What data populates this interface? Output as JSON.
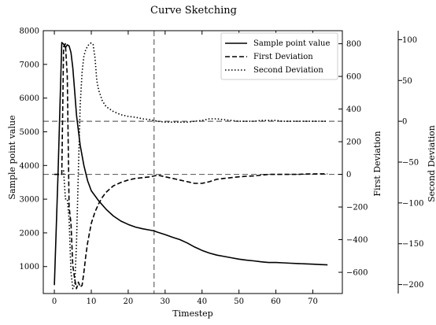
{
  "chart_data": {
    "type": "line",
    "title": "Curve Sketching",
    "xlabel": "Timestep",
    "y_left_label": "Sample point value",
    "y_right1_label": "First Deviation",
    "y_right2_label": "Second Deviation",
    "xlim": [
      -3,
      78
    ],
    "ylim_left": [
      200,
      8000
    ],
    "ylim_right1": [
      -730,
      880
    ],
    "ylim_right2": [
      -211,
      111
    ],
    "x_ticks": [
      "0",
      "10",
      "20",
      "30",
      "40",
      "50",
      "60",
      "70"
    ],
    "y_left_ticks": [
      "1000",
      "2000",
      "3000",
      "4000",
      "5000",
      "6000",
      "7000",
      "8000"
    ],
    "y_right1_ticks": [
      "800",
      "600",
      "400",
      "200",
      "0",
      "−200",
      "−400",
      "−600"
    ],
    "y_right2_ticks": [
      "100",
      "50",
      "0",
      "−50",
      "−100",
      "−150",
      "−200"
    ],
    "vline_x": 27,
    "hline_right1": 0,
    "hline_right2": 0,
    "legend": {
      "position": "top-right",
      "entries": [
        "Sample point value",
        "First Deviation",
        "Second Deviation"
      ]
    },
    "series": [
      {
        "name": "Sample point value",
        "axis": "left",
        "style": "solid",
        "x": [
          0,
          1,
          2,
          2.5,
          3,
          3.5,
          4,
          4.5,
          5,
          5.5,
          6,
          7,
          8,
          9,
          10,
          12,
          14,
          16,
          18,
          20,
          22,
          24,
          26,
          27,
          28,
          30,
          32,
          34,
          36,
          38,
          40,
          42,
          44,
          46,
          48,
          50,
          52,
          54,
          56,
          58,
          60,
          62,
          64,
          66,
          68,
          70,
          72,
          74
        ],
        "y": [
          450,
          3800,
          7650,
          7600,
          7500,
          7580,
          7550,
          7350,
          6900,
          6200,
          5500,
          4600,
          4000,
          3550,
          3250,
          2950,
          2700,
          2500,
          2350,
          2250,
          2170,
          2120,
          2080,
          2060,
          2020,
          1950,
          1870,
          1800,
          1700,
          1580,
          1480,
          1400,
          1340,
          1300,
          1260,
          1220,
          1190,
          1170,
          1140,
          1120,
          1120,
          1110,
          1100,
          1090,
          1080,
          1070,
          1060,
          1050
        ]
      },
      {
        "name": "First Deviation",
        "axis": "right1",
        "style": "dashed",
        "x": [
          0,
          1,
          2,
          2.5,
          3,
          3.5,
          4,
          4.5,
          5,
          5.5,
          6,
          6.5,
          7,
          7.5,
          8,
          8.5,
          9,
          10,
          11,
          12,
          13,
          14,
          15,
          16,
          18,
          20,
          22,
          24,
          26,
          27,
          28,
          30,
          32,
          34,
          36,
          38,
          40,
          42,
          44,
          46,
          48,
          50,
          52,
          54,
          56,
          58,
          60,
          62,
          64,
          66,
          68,
          70,
          72,
          74
        ],
        "y": [
          0,
          0,
          0,
          780,
          800,
          600,
          -200,
          -300,
          -560,
          -640,
          -700,
          -660,
          -690,
          -680,
          -600,
          -500,
          -420,
          -300,
          -230,
          -180,
          -140,
          -110,
          -90,
          -70,
          -50,
          -35,
          -25,
          -20,
          -15,
          -10,
          -5,
          -15,
          -25,
          -35,
          -45,
          -55,
          -55,
          -45,
          -30,
          -25,
          -20,
          -15,
          -12,
          -10,
          -5,
          0,
          0,
          0,
          0,
          0,
          2,
          2,
          3,
          3
        ]
      },
      {
        "name": "Second Deviation",
        "axis": "right2",
        "style": "dotted",
        "x": [
          2.5,
          3,
          3.5,
          4,
          4.5,
          5,
          5.5,
          6,
          6.5,
          7,
          7.5,
          8,
          8.5,
          9,
          9.5,
          10,
          10.5,
          11,
          11.5,
          12,
          13,
          14,
          16,
          18,
          20,
          22,
          24,
          26,
          28,
          30,
          32,
          34,
          36,
          38,
          40,
          42,
          44,
          46,
          48,
          50,
          52,
          54,
          56,
          58,
          60,
          62,
          64,
          66,
          68,
          70,
          72,
          74
        ],
        "y": [
          -60,
          -95,
          -95,
          -120,
          -185,
          -205,
          -200,
          -150,
          -60,
          20,
          60,
          80,
          88,
          92,
          95,
          96,
          94,
          78,
          50,
          38,
          25,
          18,
          12,
          8,
          6,
          5,
          3,
          2,
          0,
          -1,
          -1,
          -1,
          -1,
          0,
          1,
          3,
          3,
          2,
          1,
          0,
          0,
          0,
          1,
          1,
          1,
          0,
          0,
          0,
          0,
          0,
          0,
          0
        ]
      }
    ]
  }
}
